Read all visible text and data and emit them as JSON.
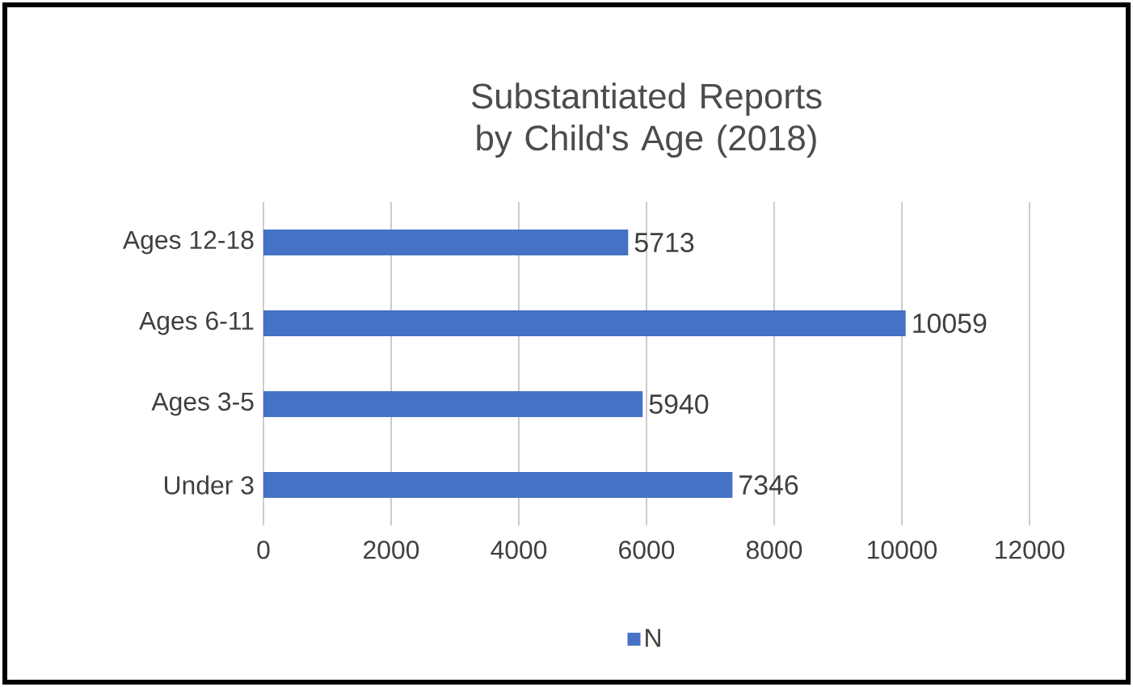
{
  "chart_data": {
    "type": "bar",
    "orientation": "horizontal",
    "title": "Substantiated Reports by Child's Age (2018)",
    "categories": [
      "Ages 12-18",
      "Ages 6-11",
      "Ages 3-5",
      "Under 3"
    ],
    "series": [
      {
        "name": "N",
        "color": "#4472c4",
        "values": [
          5713,
          10059,
          5940,
          7346
        ]
      }
    ],
    "xlim": [
      0,
      12000
    ],
    "xticks": [
      0,
      2000,
      4000,
      6000,
      8000,
      10000,
      12000
    ],
    "grid": "x",
    "legend": "bottom",
    "data_labels": true
  }
}
